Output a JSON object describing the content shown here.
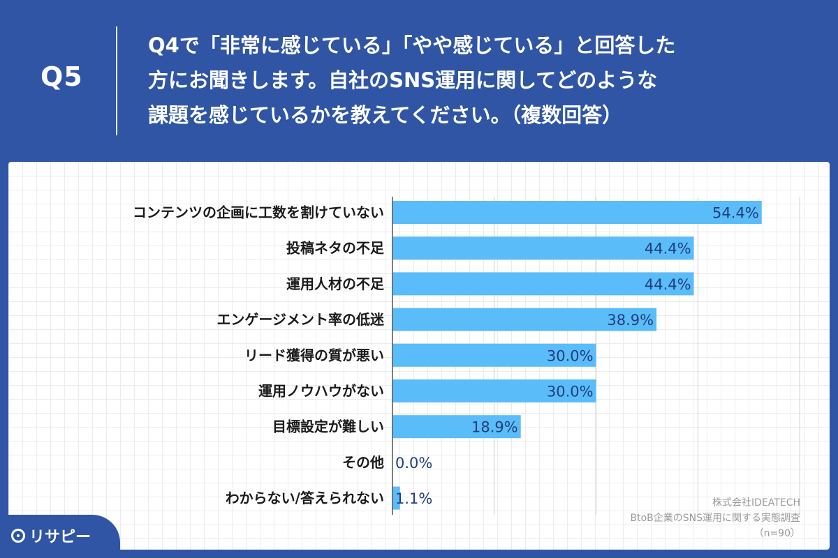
{
  "header": {
    "q_number": "Q5",
    "question_lines": [
      "Q4で「非常に感じている」「やや感じている」と回答した",
      "方にお聞きします。自社のSNS運用に関してどのような",
      "課題を感じているかを教えてください。（複数回答）"
    ]
  },
  "chart_data": {
    "type": "bar",
    "orientation": "horizontal",
    "categories": [
      "コンテンツの企画に工数を割けていない",
      "投稿ネタの不足",
      "運用人材の不足",
      "エンゲージメント率の低迷",
      "リード獲得の質が悪い",
      "運用ノウハウがない",
      "目標設定が難しい",
      "その他",
      "わからない/答えられない"
    ],
    "values": [
      54.4,
      44.4,
      44.4,
      38.9,
      30.0,
      30.0,
      18.9,
      0.0,
      1.1
    ],
    "value_labels": [
      "54.4%",
      "44.4%",
      "44.4%",
      "38.9%",
      "30.0%",
      "30.0%",
      "18.9%",
      "0.0%",
      "1.1%"
    ],
    "xlim": [
      0,
      60
    ],
    "grid": true,
    "colors": {
      "bar": "#5bbcfa",
      "value_text": "#1e3f7a"
    }
  },
  "credit": {
    "company": "株式会社IDEATECH",
    "survey": "BtoB企業のSNS運用に関する実態調査",
    "sample": "（n=90）"
  },
  "logo": {
    "text": "リサピー",
    "icon": "pin-icon"
  },
  "colors": {
    "background": "#2f55a4",
    "panel": "#ffffff"
  }
}
